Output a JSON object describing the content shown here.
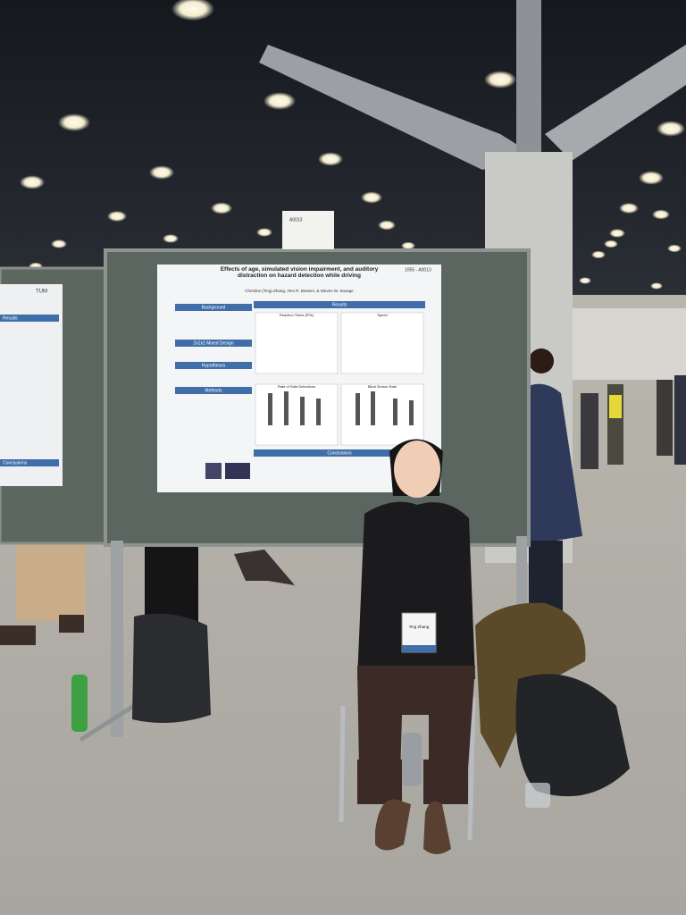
{
  "poster": {
    "number": "1055 - A0013",
    "title": "Effects of age, simulated vision impairment, and auditory distraction on hazard detection while driving",
    "authors": "Christine (Ting) Zhang, Alex R. Bowers, & Steven W. Savage",
    "sections": [
      "Background",
      "2x2x2 Mixed Design",
      "Hypotheses",
      "Methods",
      "Results",
      "Conclusions"
    ],
    "charts": [
      "Reaction Times (RTs)",
      "Speed",
      "Rate of Safe Detections",
      "Blind Sensor Rate"
    ]
  },
  "sign": "A0013",
  "left_poster": {
    "logo": "TUM",
    "sections": [
      "Results",
      "Conclusions"
    ]
  },
  "badge": "Ting Zhang"
}
